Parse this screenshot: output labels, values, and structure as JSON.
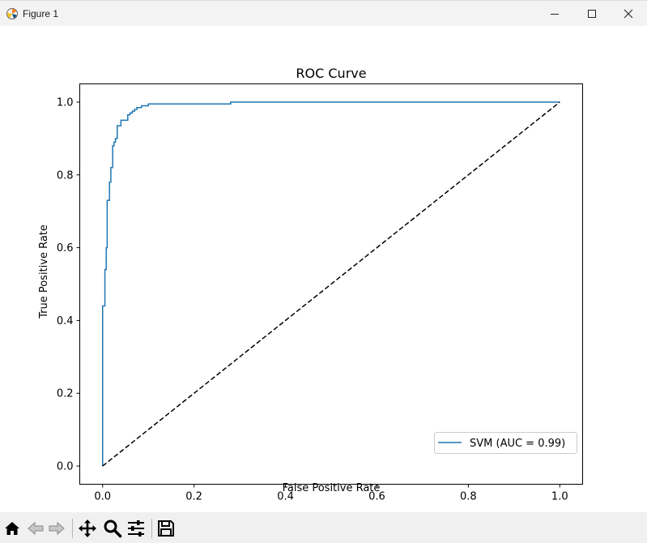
{
  "window": {
    "title": "Figure 1",
    "icons": [
      "matplotlib-logo-icon",
      "minimize-icon",
      "maximize-icon",
      "close-icon"
    ]
  },
  "toolbar": {
    "tools": [
      "home-icon",
      "back-arrow-icon",
      "forward-arrow-icon",
      "pan-icon",
      "zoom-icon",
      "configure-subplots-icon",
      "save-icon"
    ]
  },
  "chart_data": {
    "type": "line",
    "title": "ROC Curve",
    "xlabel": "False Positive Rate",
    "ylabel": "True Positive Rate",
    "xlim": [
      -0.05,
      1.05
    ],
    "ylim": [
      -0.05,
      1.05
    ],
    "xticks": [
      0.0,
      0.2,
      0.4,
      0.6,
      0.8,
      1.0
    ],
    "xtick_labels": [
      "0.0",
      "0.2",
      "0.4",
      "0.6",
      "0.8",
      "1.0"
    ],
    "yticks": [
      0.0,
      0.2,
      0.4,
      0.6,
      0.8,
      1.0
    ],
    "ytick_labels": [
      "0.0",
      "0.2",
      "0.4",
      "0.6",
      "0.8",
      "1.0"
    ],
    "grid": false,
    "legend_position": "lower-right",
    "series": [
      {
        "name": "SVM (AUC = 0.99)",
        "color": "#1f77b4",
        "style": "steps",
        "x": [
          0.0,
          0.0,
          0.005,
          0.005,
          0.008,
          0.008,
          0.01,
          0.01,
          0.015,
          0.015,
          0.018,
          0.018,
          0.022,
          0.022,
          0.025,
          0.025,
          0.028,
          0.028,
          0.032,
          0.032,
          0.04,
          0.04,
          0.055,
          0.055,
          0.06,
          0.06,
          0.065,
          0.065,
          0.07,
          0.07,
          0.075,
          0.075,
          0.085,
          0.085,
          0.1,
          0.1,
          0.28,
          0.28,
          1.0
        ],
        "y": [
          0.0,
          0.44,
          0.44,
          0.54,
          0.54,
          0.6,
          0.6,
          0.73,
          0.73,
          0.78,
          0.78,
          0.82,
          0.82,
          0.88,
          0.88,
          0.89,
          0.89,
          0.9,
          0.9,
          0.935,
          0.935,
          0.95,
          0.95,
          0.965,
          0.965,
          0.97,
          0.97,
          0.975,
          0.975,
          0.98,
          0.98,
          0.985,
          0.985,
          0.99,
          0.99,
          0.995,
          0.995,
          1.0,
          1.0
        ]
      },
      {
        "name": "",
        "color": "#000000",
        "style": "dashed",
        "x": [
          0.0,
          1.0
        ],
        "y": [
          0.0,
          1.0
        ]
      }
    ]
  }
}
